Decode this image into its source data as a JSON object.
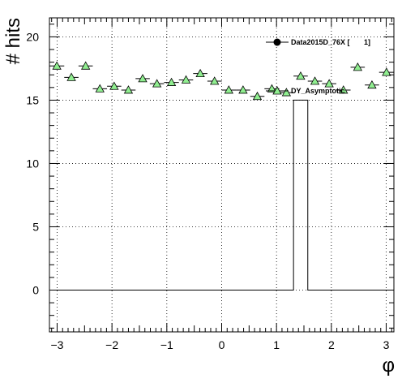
{
  "chart_data": {
    "type": "scatter",
    "xlabel": "φ",
    "ylabel": "# hits",
    "xlim": [
      -3.14,
      3.14
    ],
    "ylim": [
      -3.3,
      21.5
    ],
    "x_ticks": [
      -3,
      -2,
      -1,
      0,
      1,
      2,
      3
    ],
    "y_ticks": [
      0,
      5,
      10,
      15,
      20
    ],
    "x_tick_labels": [
      "−3",
      "−2",
      "−1",
      "0",
      "1",
      "2",
      "3"
    ],
    "y_tick_labels": [
      "0",
      "5",
      "10",
      "15",
      "20"
    ],
    "grid": true,
    "legend_position": "top-right",
    "bin_edges": [
      -3.14,
      -2.87,
      -2.61,
      -2.35,
      -2.09,
      -1.83,
      -1.57,
      -1.31,
      -1.05,
      -0.78,
      -0.52,
      -0.26,
      0.0,
      0.26,
      0.52,
      0.78,
      1.05,
      1.31,
      1.57,
      1.83,
      2.09,
      2.35,
      2.61,
      2.87,
      3.14
    ],
    "series": [
      {
        "name": "Data2015D_76X [       1]",
        "style": "histogram-with-marker",
        "marker_color": "#000000",
        "values": [
          0,
          0,
          0,
          0,
          0,
          0,
          0,
          0,
          0,
          0,
          0,
          0,
          0,
          0,
          0,
          0,
          0,
          15,
          0,
          0,
          0,
          0,
          0,
          0
        ]
      },
      {
        "name": "DY_Asymptotic",
        "style": "triangle-markers",
        "marker_color": "#90ee90",
        "values": [
          17.7,
          16.8,
          17.7,
          15.9,
          16.1,
          15.8,
          16.7,
          16.3,
          16.4,
          16.6,
          17.1,
          16.5,
          15.8,
          15.8,
          15.3,
          15.9,
          15.6,
          16.9,
          16.5,
          16.3,
          15.8,
          17.6,
          16.2,
          17.2
        ]
      }
    ]
  }
}
